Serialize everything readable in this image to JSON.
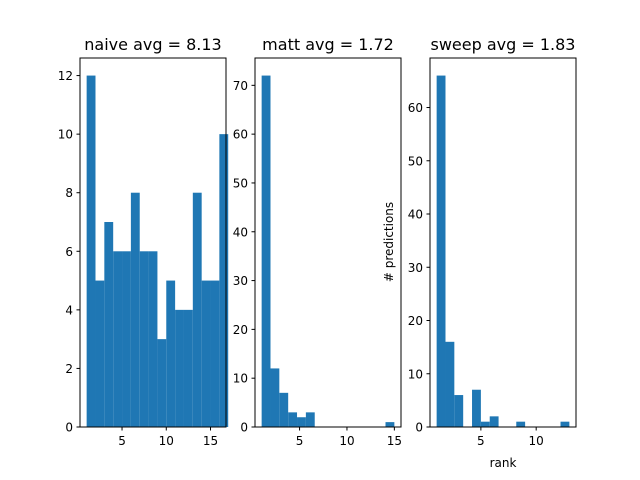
{
  "colors": {
    "bar": "#1f77b4",
    "axis": "#000000",
    "background": "#ffffff"
  },
  "chart_data": [
    {
      "type": "bar",
      "title": "naive avg = 8.13",
      "xlabel": "",
      "ylabel": "",
      "grid": false,
      "xlim": [
        0.25,
        16.75
      ],
      "ylim": [
        0,
        12.6
      ],
      "xticks": [
        5,
        10,
        15
      ],
      "yticks": [
        0,
        2,
        4,
        6,
        8,
        10,
        12
      ],
      "bin_start": 1,
      "bin_width": 1,
      "values": [
        12,
        5,
        7,
        6,
        6,
        8,
        6,
        6,
        3,
        5,
        4,
        4,
        8,
        5,
        5,
        10
      ]
    },
    {
      "type": "bar",
      "title": "matt avg = 1.72",
      "xlabel": "",
      "ylabel": "",
      "grid": false,
      "xlim": [
        0.3,
        15.7
      ],
      "ylim": [
        0,
        75.6
      ],
      "xticks": [
        5,
        10,
        15
      ],
      "yticks": [
        0,
        10,
        20,
        30,
        40,
        50,
        60,
        70
      ],
      "bin_start": 1,
      "bin_width": 0.9333,
      "values": [
        72,
        12,
        7,
        3,
        2,
        3,
        0,
        0,
        0,
        0,
        0,
        0,
        0,
        0,
        1
      ]
    },
    {
      "type": "bar",
      "title": "sweep avg = 1.83",
      "xlabel": "rank",
      "ylabel": "# predictions",
      "grid": false,
      "xlim": [
        0.4,
        13.6
      ],
      "ylim": [
        0,
        69.3
      ],
      "xticks": [
        5,
        10
      ],
      "yticks": [
        0,
        10,
        20,
        30,
        40,
        50,
        60
      ],
      "bin_start": 1,
      "bin_width": 0.8,
      "values": [
        66,
        16,
        6,
        0,
        7,
        1,
        2,
        0,
        0,
        1,
        0,
        0,
        0,
        0,
        1
      ]
    }
  ]
}
